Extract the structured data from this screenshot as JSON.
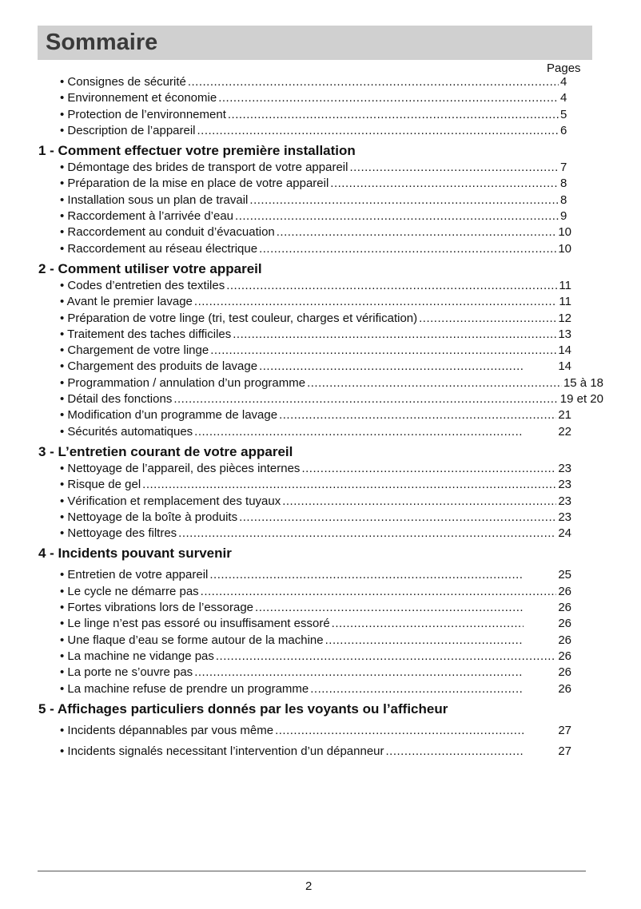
{
  "title": "Sommaire",
  "pages_label": "Pages",
  "intro": [
    {
      "text": "• Consignes de sécurité",
      "page": "4"
    },
    {
      "text": "• Environnement et économie",
      "page": "4"
    },
    {
      "text": "• Protection de l’environnement",
      "page": "5"
    },
    {
      "text": "• Description de l’appareil",
      "page": "6"
    }
  ],
  "sections": [
    {
      "title": "1 - Comment effectuer votre première installation",
      "items": [
        {
          "text": "• Démontage des brides de transport de votre appareil",
          "page": "7"
        },
        {
          "text": "• Préparation de la mise en place de votre appareil",
          "page": "8"
        },
        {
          "text": "• Installation sous un plan de travail",
          "page": "8"
        },
        {
          "text": "• Raccordement à l’arrivée d’eau",
          "page": "9"
        },
        {
          "text": "• Raccordement au conduit d’évacuation",
          "page": "10"
        },
        {
          "text": "• Raccordement au réseau électrique",
          "page": "10"
        }
      ]
    },
    {
      "title": "2 - Comment utiliser votre appareil",
      "items": [
        {
          "text": "• Codes d’entretien des textiles",
          "page": "11"
        },
        {
          "text": "• Avant le premier lavage",
          "page": "11"
        },
        {
          "text": "• Préparation de votre linge (tri, test couleur, charges et vérification)",
          "page": "12"
        },
        {
          "text": "• Traitement des taches difficiles",
          "page": "13"
        },
        {
          "text": "• Chargement de votre linge",
          "page": "14"
        },
        {
          "text": "• Chargement des produits de lavage",
          "page": "14"
        },
        {
          "text": "• Programmation / annulation d’un programme",
          "page": "15 à 18"
        },
        {
          "text": "• Détail des fonctions",
          "page": "19 et 20"
        },
        {
          "text": "• Modification d’un programme de lavage",
          "page": "21"
        },
        {
          "text": "• Sécurités automatiques",
          "page": "22"
        }
      ]
    },
    {
      "title": "3 - L’entretien courant de votre appareil",
      "items": [
        {
          "text": "• Nettoyage de l’appareil, des pièces internes",
          "page": "23"
        },
        {
          "text": "• Risque de gel",
          "page": "23"
        },
        {
          "text": "• Vérification et remplacement des tuyaux",
          "page": "23"
        },
        {
          "text": "• Nettoyage de la boîte à produits",
          "page": "23"
        },
        {
          "text": "• Nettoyage des filtres",
          "page": "24"
        }
      ]
    },
    {
      "title": "4 - Incidents pouvant survenir",
      "items": [
        {
          "text": "• Entretien de votre appareil",
          "page": "25"
        },
        {
          "text": "• Le cycle ne démarre pas",
          "page": "26"
        },
        {
          "text": "• Fortes vibrations lors de l’essorage",
          "page": "26"
        },
        {
          "text": "• Le linge n’est pas essoré ou insuffisament essoré",
          "page": "26"
        },
        {
          "text": "• Une flaque d’eau se forme autour de la machine",
          "page": "26"
        },
        {
          "text": "• La machine ne vidange pas",
          "page": "26"
        },
        {
          "text": "• La porte ne s’ouvre pas",
          "page": "26"
        },
        {
          "text": "• La machine refuse de prendre un programme",
          "page": "26"
        }
      ]
    },
    {
      "title": "5 - Affichages particuliers donnés par les voyants ou l’afficheur",
      "items": [
        {
          "text": "• Incidents dépannables par vous même",
          "page": "27"
        },
        {
          "text": "• Incidents signalés necessitant l’intervention d’un dépanneur",
          "page": "27"
        }
      ]
    }
  ],
  "page_number": "2"
}
